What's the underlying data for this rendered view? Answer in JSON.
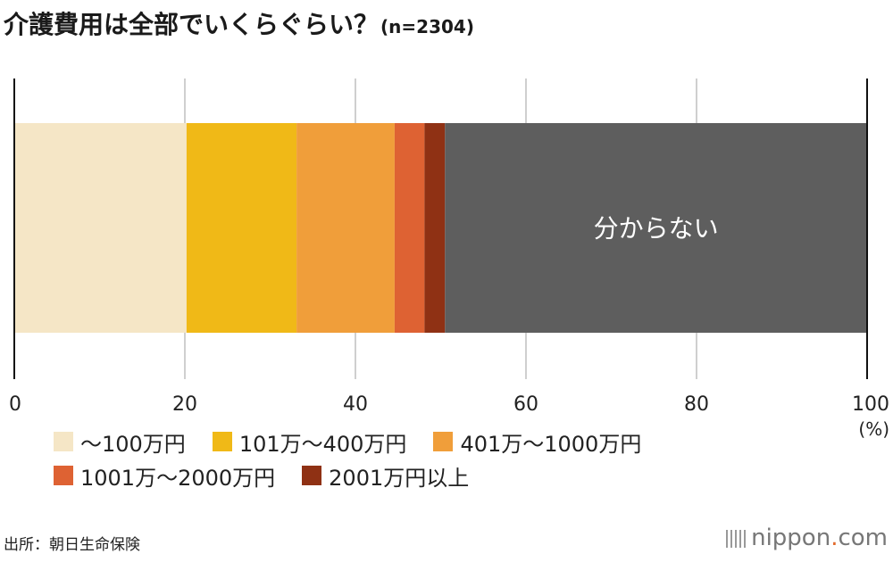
{
  "title": "介護費用は全部でいくらぐらい？",
  "sample": "(n=2304)",
  "chart_data": {
    "type": "bar",
    "orientation": "horizontal-stacked-100",
    "title": "介護費用は全部でいくらぐらい？(n=2304)",
    "xlabel": "(%)",
    "xlim": [
      0,
      100
    ],
    "ticks": [
      0,
      20,
      40,
      60,
      80,
      100
    ],
    "tick_labels": [
      "0",
      "20",
      "40",
      "60",
      "80",
      "100"
    ],
    "grid": true,
    "series": [
      {
        "name": "～100万円",
        "value": 20.2,
        "color": "#f5e6c6"
      },
      {
        "name": "101万～400万円",
        "value": 12.9,
        "color": "#f0b917"
      },
      {
        "name": "401万～1000万円",
        "value": 11.5,
        "color": "#f09e3a"
      },
      {
        "name": "1001万～2000万円",
        "value": 3.5,
        "color": "#de6233"
      },
      {
        "name": "2001万円以上",
        "value": 2.4,
        "color": "#8f3114"
      },
      {
        "name": "分からない",
        "value": 49.5,
        "color": "#5e5e5e",
        "label": "分からない"
      }
    ]
  },
  "legend": {
    "rows": [
      [
        {
          "label": "～100万円",
          "color": "#f5e6c6"
        },
        {
          "label": "101万～400万円",
          "color": "#f0b917"
        },
        {
          "label": "401万～1000万円",
          "color": "#f09e3a"
        }
      ],
      [
        {
          "label": "1001万～2000万円",
          "color": "#de6233"
        },
        {
          "label": "2001万円以上",
          "color": "#8f3114"
        }
      ]
    ]
  },
  "source": "出所：朝日生命保険",
  "brand": {
    "name": "nippon",
    "dot": ".",
    "tld": "com"
  }
}
